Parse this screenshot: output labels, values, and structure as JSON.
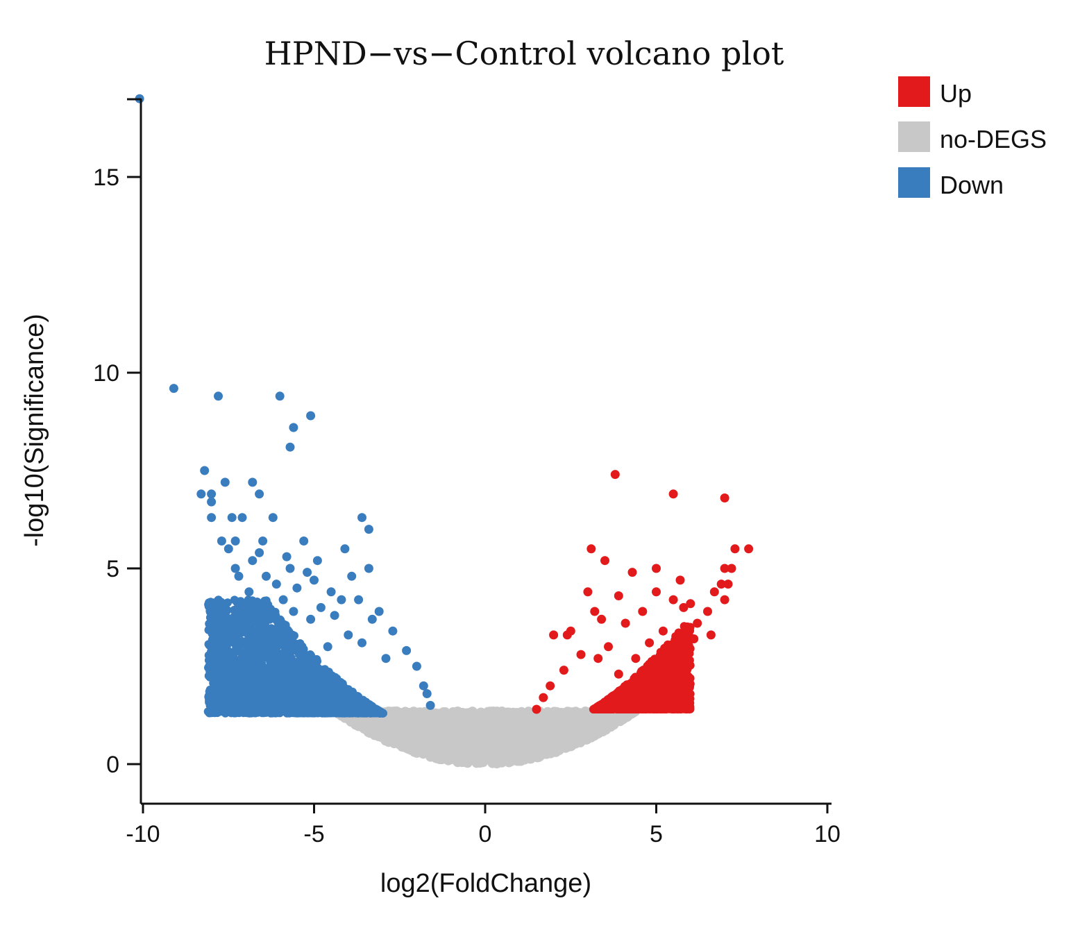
{
  "chart_data": {
    "type": "scatter",
    "title": "HPND−vs−Control volcano plot",
    "xlabel": "log2(FoldChange)",
    "ylabel": "-log10(Significance)",
    "xlim": [
      -10.2,
      10.2
    ],
    "ylim": [
      -1,
      17
    ],
    "x_ticks": [
      -10,
      -5,
      0,
      5,
      10
    ],
    "x_tick_labels": [
      "-10",
      "-5",
      "0",
      "5",
      "10"
    ],
    "y_ticks": [
      0,
      5,
      10,
      15
    ],
    "y_tick_labels": [
      "0",
      "5",
      "10",
      "15"
    ],
    "grid": false,
    "legend_position": "top-right",
    "legend": [
      {
        "label": "Up",
        "color": "#e31a1c"
      },
      {
        "label": "no-DEGS",
        "color": "#c8c8c8"
      },
      {
        "label": "Down",
        "color": "#3a7dbf"
      }
    ],
    "series": [
      {
        "name": "Down",
        "color": "#3a7dbf",
        "points": [
          [
            -10.1,
            17.0
          ],
          [
            -9.1,
            9.6
          ],
          [
            -7.8,
            9.4
          ],
          [
            -6.0,
            9.4
          ],
          [
            -5.1,
            8.9
          ],
          [
            -5.6,
            8.6
          ],
          [
            -5.7,
            8.1
          ],
          [
            -8.2,
            7.5
          ],
          [
            -7.6,
            7.2
          ],
          [
            -6.8,
            7.2
          ],
          [
            -6.6,
            6.9
          ],
          [
            -8.3,
            6.9
          ],
          [
            -8.0,
            6.9
          ],
          [
            -8.0,
            6.7
          ],
          [
            -8.0,
            6.3
          ],
          [
            -7.4,
            6.3
          ],
          [
            -7.1,
            6.3
          ],
          [
            -6.2,
            6.3
          ],
          [
            -3.6,
            6.3
          ],
          [
            -3.4,
            6.0
          ],
          [
            -7.7,
            5.7
          ],
          [
            -7.3,
            5.7
          ],
          [
            -6.5,
            5.7
          ],
          [
            -5.3,
            5.7
          ],
          [
            -4.1,
            5.5
          ],
          [
            -7.5,
            5.5
          ],
          [
            -6.6,
            5.4
          ],
          [
            -5.8,
            5.3
          ],
          [
            -6.8,
            5.2
          ],
          [
            -4.9,
            5.2
          ],
          [
            -3.4,
            5.0
          ],
          [
            -5.7,
            5.0
          ],
          [
            -7.3,
            5.0
          ],
          [
            -5.2,
            4.9
          ],
          [
            -3.9,
            4.8
          ],
          [
            -7.2,
            4.8
          ],
          [
            -6.4,
            4.8
          ],
          [
            -5.0,
            4.7
          ],
          [
            -6.1,
            4.6
          ],
          [
            -5.5,
            4.5
          ],
          [
            -4.5,
            4.4
          ],
          [
            -6.9,
            4.4
          ],
          [
            -3.7,
            4.2
          ],
          [
            -5.9,
            4.2
          ],
          [
            -4.2,
            4.2
          ],
          [
            -6.7,
            4.1
          ],
          [
            -4.8,
            4.0
          ],
          [
            -3.1,
            3.9
          ],
          [
            -5.6,
            3.9
          ],
          [
            -4.4,
            3.8
          ],
          [
            -6.3,
            3.7
          ],
          [
            -3.3,
            3.7
          ],
          [
            -5.1,
            3.7
          ],
          [
            -6.8,
            3.6
          ],
          [
            -2.7,
            3.4
          ],
          [
            -4.0,
            3.3
          ],
          [
            -5.8,
            3.3
          ],
          [
            -3.6,
            3.1
          ],
          [
            -2.3,
            2.9
          ],
          [
            -4.6,
            3.0
          ],
          [
            -2.0,
            2.5
          ],
          [
            -2.9,
            2.7
          ],
          [
            -1.8,
            2.0
          ],
          [
            -1.7,
            1.8
          ],
          [
            -1.6,
            1.5
          ]
        ]
      },
      {
        "name": "Up",
        "color": "#e31a1c",
        "points": [
          [
            3.8,
            7.4
          ],
          [
            5.5,
            6.9
          ],
          [
            7.0,
            6.8
          ],
          [
            7.7,
            5.5
          ],
          [
            7.3,
            5.5
          ],
          [
            3.1,
            5.5
          ],
          [
            3.5,
            5.2
          ],
          [
            7.0,
            5.0
          ],
          [
            7.2,
            5.0
          ],
          [
            5.0,
            5.0
          ],
          [
            4.3,
            4.9
          ],
          [
            5.7,
            4.7
          ],
          [
            6.9,
            4.6
          ],
          [
            7.1,
            4.6
          ],
          [
            3.0,
            4.4
          ],
          [
            3.9,
            4.3
          ],
          [
            6.7,
            4.4
          ],
          [
            7.0,
            4.2
          ],
          [
            5.0,
            4.4
          ],
          [
            6.0,
            4.1
          ],
          [
            5.5,
            4.2
          ],
          [
            3.2,
            3.9
          ],
          [
            4.6,
            3.9
          ],
          [
            5.8,
            4.0
          ],
          [
            6.5,
            3.9
          ],
          [
            3.4,
            3.7
          ],
          [
            2.5,
            3.4
          ],
          [
            2.0,
            3.3
          ],
          [
            2.4,
            3.3
          ],
          [
            6.2,
            3.6
          ],
          [
            6.6,
            3.3
          ],
          [
            4.1,
            3.6
          ],
          [
            5.2,
            3.4
          ],
          [
            6.1,
            3.2
          ],
          [
            4.8,
            3.1
          ],
          [
            3.6,
            3.0
          ],
          [
            5.9,
            2.9
          ],
          [
            2.8,
            2.8
          ],
          [
            3.3,
            2.7
          ],
          [
            4.4,
            2.7
          ],
          [
            5.6,
            2.6
          ],
          [
            2.3,
            2.4
          ],
          [
            3.9,
            2.3
          ],
          [
            1.9,
            2.0
          ],
          [
            1.7,
            1.7
          ],
          [
            1.5,
            1.4
          ]
        ]
      }
    ],
    "regions": [
      {
        "name": "Down",
        "color": "#3a7dbf",
        "x_range": [
          -8.1,
          -1.5
        ],
        "y_range": [
          1.3,
          4.2
        ],
        "v_center": 0.0,
        "v_coef": 0.095,
        "v_offset": 0.0
      },
      {
        "name": "Up",
        "color": "#e31a1c",
        "x_range": [
          1.5,
          6.0
        ],
        "y_range": [
          1.4,
          3.6
        ],
        "v_center": 0.0,
        "v_coef": 0.095,
        "v_offset": 0.0
      },
      {
        "name": "no-DEGS",
        "color": "#c8c8c8",
        "x_range": [
          -4.3,
          4.5
        ],
        "y_range": [
          0.0,
          1.35
        ],
        "v_center": 0.0,
        "v_coef": 0.07,
        "v_offset": 0.0
      }
    ]
  }
}
